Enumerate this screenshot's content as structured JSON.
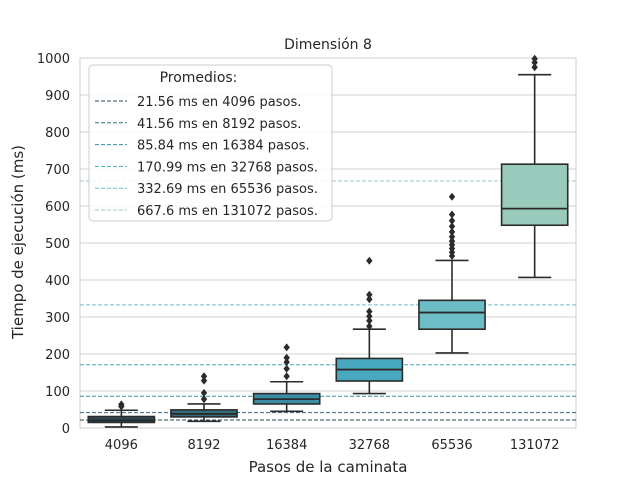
{
  "chart_data": {
    "type": "box",
    "title": "Dimensión 8",
    "xlabel": "Pasos de la caminata",
    "ylabel": "Tiempo de ejecución (ms)",
    "ylim": [
      0,
      1000
    ],
    "yticks": [
      0,
      100,
      200,
      300,
      400,
      500,
      600,
      700,
      800,
      900,
      1000
    ],
    "grid": "horizontal",
    "legend_position": "top-left",
    "categories": [
      "4096",
      "8192",
      "16384",
      "32768",
      "65536",
      "131072"
    ],
    "boxes": [
      {
        "category": "4096",
        "whisker_low": 3,
        "q1": 15,
        "median": 21,
        "q3": 31,
        "whisker_high": 48,
        "outliers": [
          58,
          64
        ],
        "color": "#2c4a55"
      },
      {
        "category": "8192",
        "whisker_low": 18,
        "q1": 30,
        "median": 38,
        "q3": 49,
        "whisker_high": 65,
        "outliers": [
          78,
          95,
          128,
          140
        ],
        "color": "#336b7d"
      },
      {
        "category": "16384",
        "whisker_low": 45,
        "q1": 65,
        "median": 78,
        "q3": 93,
        "whisker_high": 125,
        "outliers": [
          140,
          160,
          178,
          190,
          218
        ],
        "color": "#3a8ea5"
      },
      {
        "category": "32768",
        "whisker_low": 93,
        "q1": 127,
        "median": 158,
        "q3": 188,
        "whisker_high": 267,
        "outliers": [
          275,
          290,
          302,
          315,
          348,
          360,
          452
        ],
        "color": "#48a8bf"
      },
      {
        "category": "65536",
        "whisker_low": 203,
        "q1": 267,
        "median": 312,
        "q3": 345,
        "whisker_high": 453,
        "outliers": [
          465,
          475,
          485,
          495,
          505,
          517,
          530,
          545,
          560,
          577,
          625
        ],
        "color": "#6dbdc7"
      },
      {
        "category": "131072",
        "whisker_low": 407,
        "q1": 548,
        "median": 593,
        "q3": 713,
        "whisker_high": 955,
        "outliers": [
          975,
          988,
          998
        ],
        "color": "#98cbbb"
      }
    ],
    "averages": [
      {
        "value": 21.56,
        "color": "#2c4a55"
      },
      {
        "value": 41.56,
        "color": "#336b7d"
      },
      {
        "value": 85.84,
        "color": "#3a8ea5"
      },
      {
        "value": 170.99,
        "color": "#48a8bf"
      },
      {
        "value": 332.69,
        "color": "#6dbdc7"
      },
      {
        "value": 667.6,
        "color": "#98cbbb"
      }
    ],
    "legend": {
      "title": "Promedios:",
      "entries": [
        "21.56 ms en 4096 pasos.",
        "41.56 ms en 8192 pasos.",
        "85.84 ms en 16384 pasos.",
        "170.99 ms en 32768 pasos.",
        "332.69 ms en 65536 pasos.",
        "667.6 ms en 131072 pasos."
      ]
    }
  }
}
